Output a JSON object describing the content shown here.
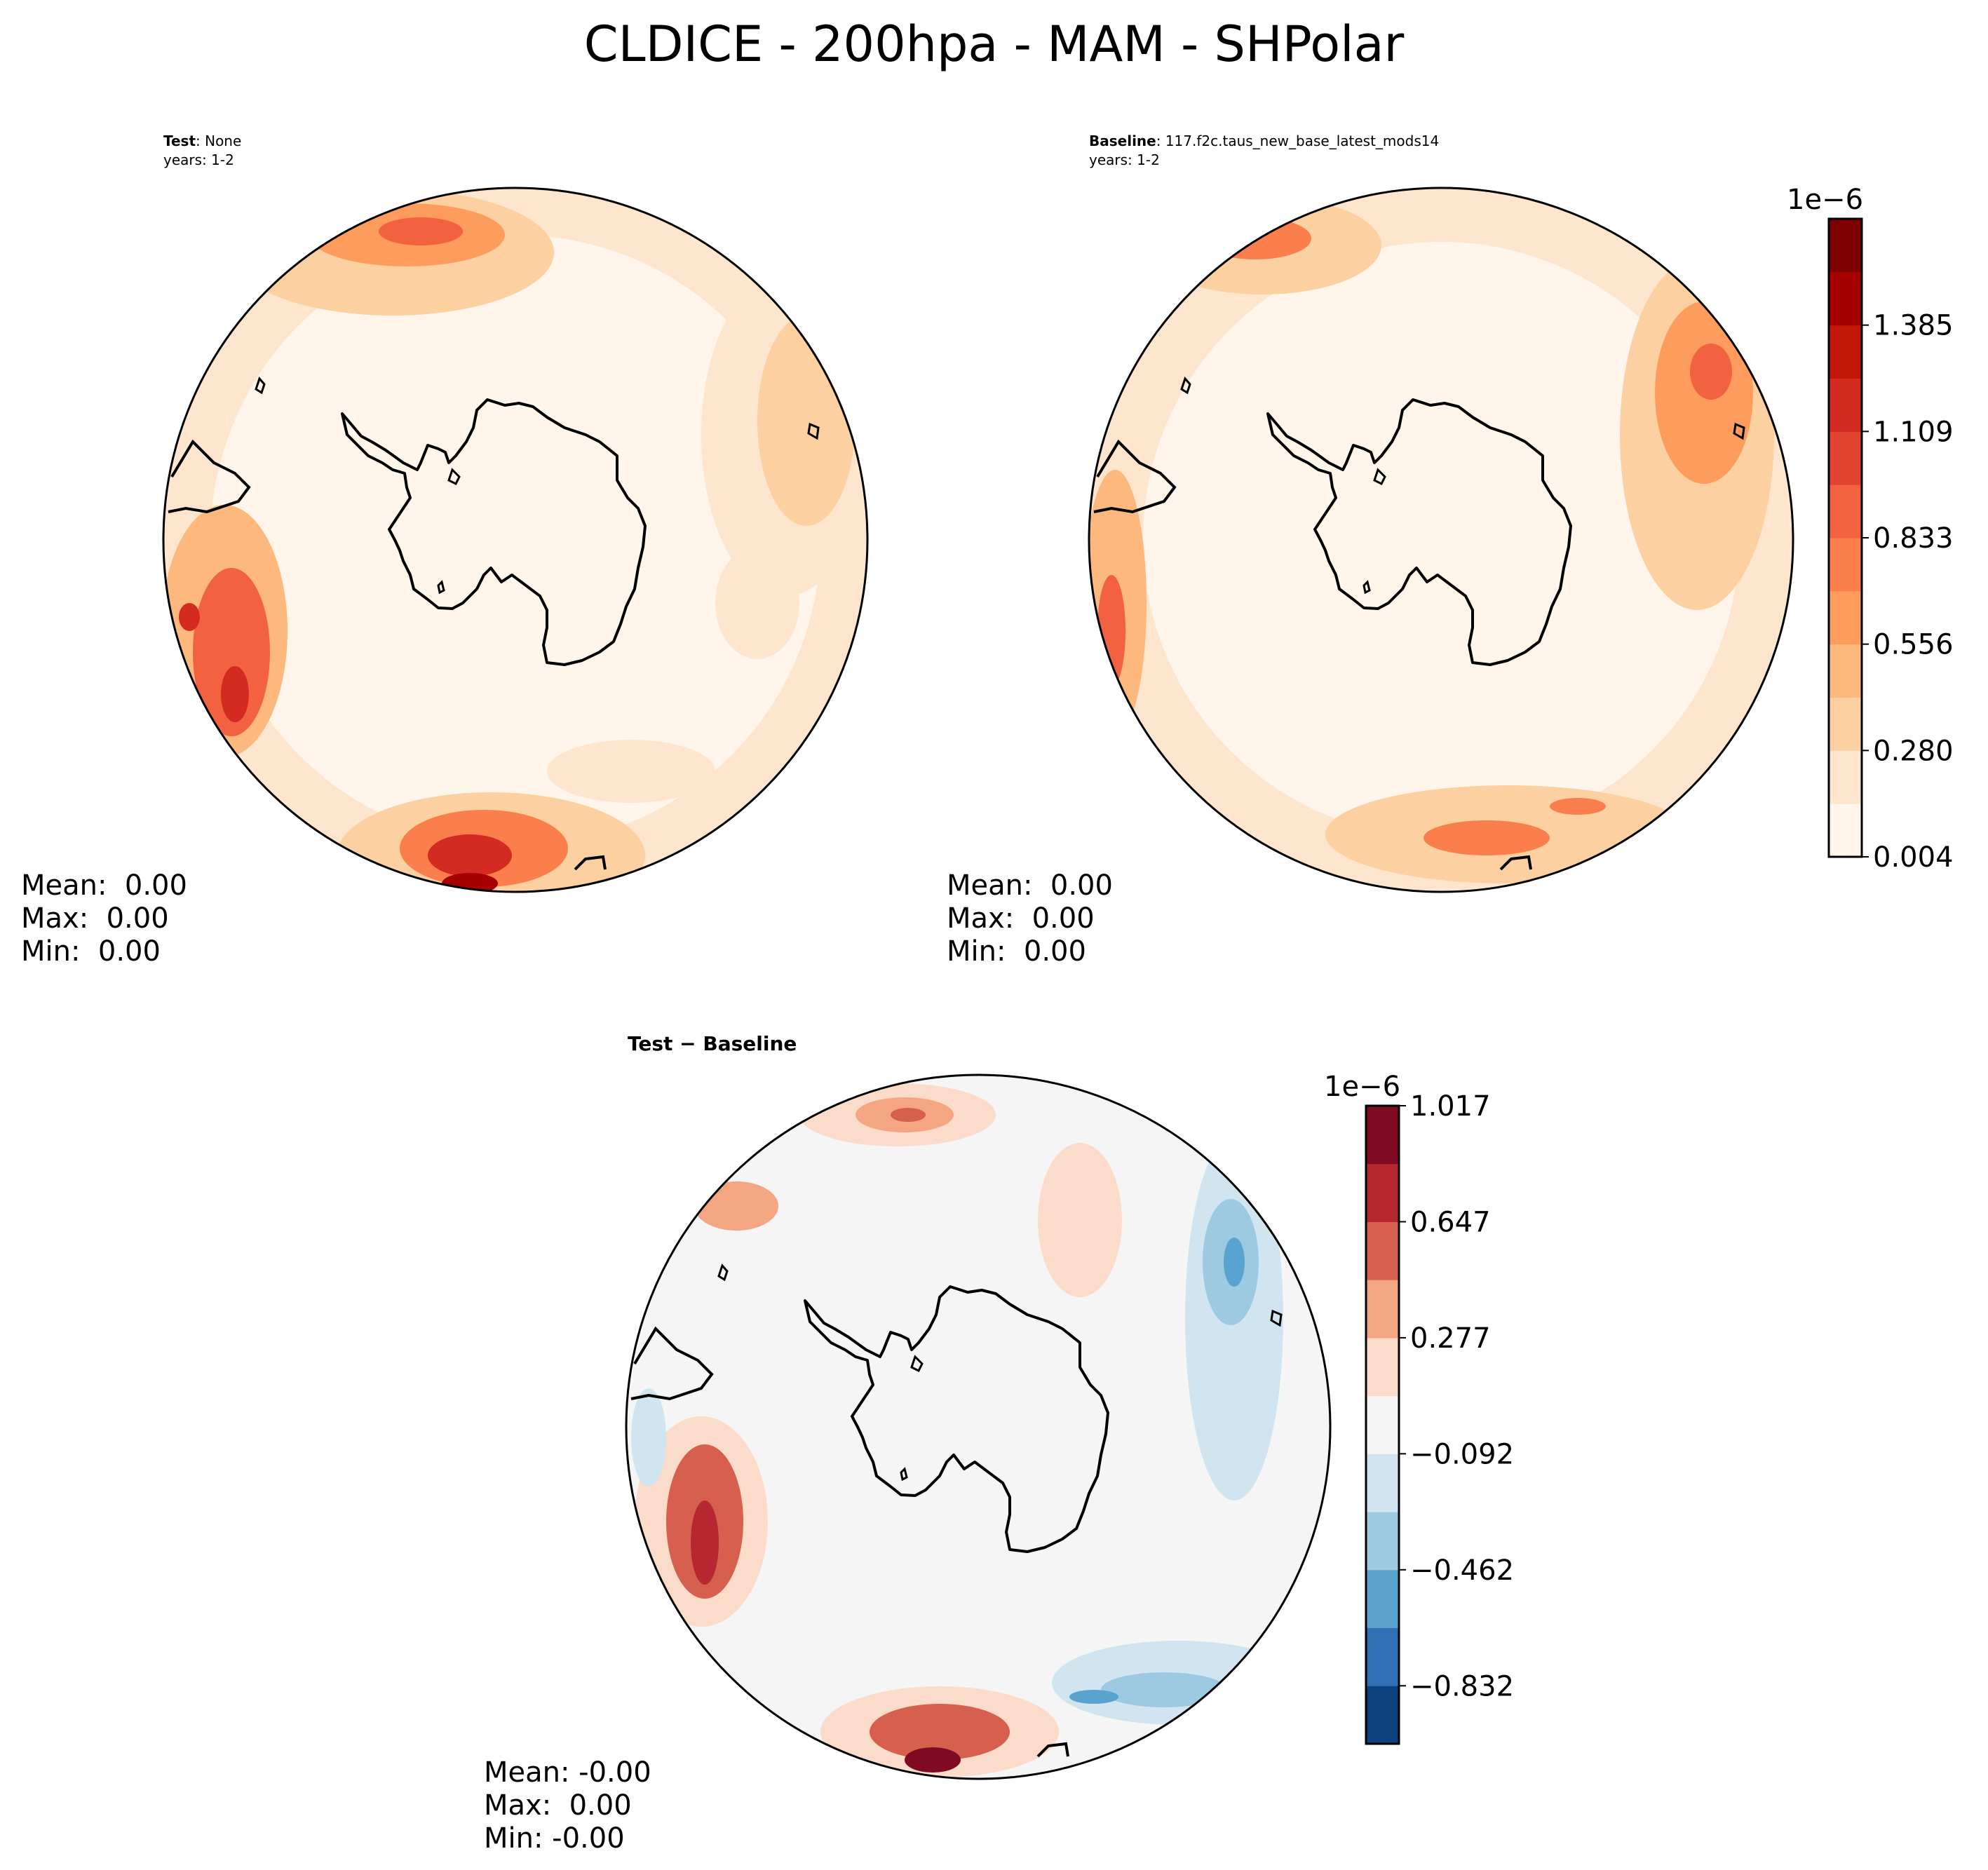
{
  "figure": {
    "title": "CLDICE - 200hpa - MAM - SHPolar"
  },
  "panels": {
    "test": {
      "name_bold": "Test",
      "name_rest": ": None",
      "years": "years: 1-2",
      "mean": "Mean:  0.00",
      "max": "Max:  0.00",
      "min": "Min:  0.00"
    },
    "baseline": {
      "name_bold": "Baseline",
      "name_rest": ": 117.f2c.taus_new_base_latest_mods14",
      "years": "years: 1-2",
      "mean": "Mean:  0.00",
      "max": "Max:  0.00",
      "min": "Min:  0.00"
    },
    "diff": {
      "name": "Test − Baseline",
      "mean": "Mean: -0.00",
      "max": "Max:  0.00",
      "min": "Min: -0.00"
    }
  },
  "colorbars": {
    "main": {
      "exponent": "1e−6",
      "ticks": [
        "0.004",
        "0.280",
        "0.556",
        "0.833",
        "1.109",
        "1.385"
      ],
      "colors": [
        "#fff5eb",
        "#fee6ce",
        "#fdd0a2",
        "#fdb97d",
        "#fd9c5c",
        "#fb7f4c",
        "#f26140",
        "#e34432",
        "#d32b22",
        "#c11608",
        "#a70000",
        "#7f0000"
      ]
    },
    "diff": {
      "exponent": "1e−6",
      "ticks": [
        "−0.832",
        "−0.462",
        "−0.092",
        "0.277",
        "0.647",
        "1.017"
      ],
      "colors": [
        "#0b427d",
        "#2f71b4",
        "#5ba3cf",
        "#9ecae1",
        "#d1e5f0",
        "#f5f5f5",
        "#fbdbc9",
        "#f4a582",
        "#d6604d",
        "#b7272f",
        "#800a21"
      ]
    }
  },
  "chart_data": [
    {
      "type": "heatmap",
      "title": "Test",
      "subtitle": "Test: None, years: 1-2",
      "projection": "south polar stereographic",
      "units_scale": "1e−6",
      "colorbar_ticks": [
        0.004,
        0.28,
        0.556,
        0.833,
        1.109,
        1.385
      ],
      "stats": {
        "mean": 0.0,
        "max": 0.0,
        "min": 0.0
      }
    },
    {
      "type": "heatmap",
      "title": "Baseline",
      "subtitle": "Baseline: 117.f2c.taus_new_base_latest_mods14, years: 1-2",
      "projection": "south polar stereographic",
      "units_scale": "1e−6",
      "colorbar_ticks": [
        0.004,
        0.28,
        0.556,
        0.833,
        1.109,
        1.385
      ],
      "stats": {
        "mean": 0.0,
        "max": 0.0,
        "min": 0.0
      }
    },
    {
      "type": "heatmap",
      "title": "Test − Baseline",
      "projection": "south polar stereographic",
      "units_scale": "1e−6",
      "colorbar_ticks": [
        -0.832,
        -0.462,
        -0.092,
        0.277,
        0.647,
        1.017
      ],
      "stats": {
        "mean": -0.0,
        "max": 0.0,
        "min": -0.0
      }
    }
  ]
}
